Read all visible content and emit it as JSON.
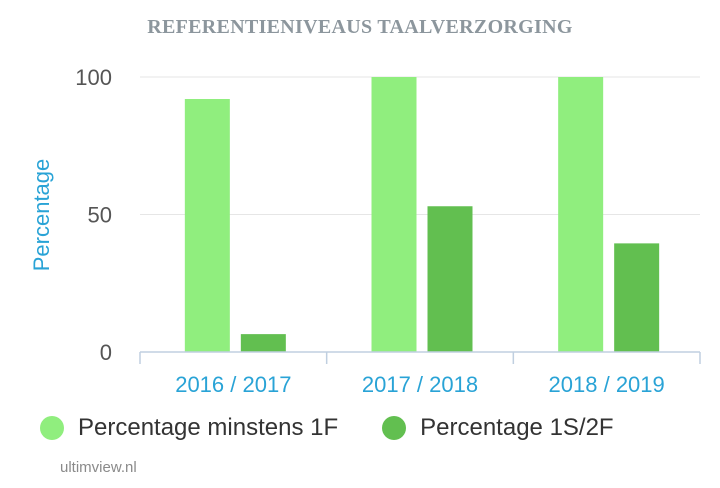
{
  "chart_data": {
    "type": "bar",
    "title": "REFERENTIENIVEAUS TAALVERZORGING",
    "ylabel": "Percentage",
    "xlabel": "",
    "categories": [
      "2016 / 2017",
      "2017 / 2018",
      "2018 / 2019"
    ],
    "series": [
      {
        "name": "Percentage minstens 1F",
        "values": [
          92,
          100,
          100
        ],
        "color": "#90ee7e"
      },
      {
        "name": "Percentage 1S/2F",
        "values": [
          6.5,
          53,
          39.5
        ],
        "color": "#62bf50"
      }
    ],
    "ylim": [
      0,
      100
    ],
    "yticks": [
      0,
      50,
      100
    ],
    "grid": true,
    "legend": "bottom-left",
    "colors": {
      "title": "#8c969d",
      "axis_labels": "#29a3d6",
      "tick_labels": "#555555",
      "grid": "#e6e6e6",
      "axis": "#c0cfe0"
    }
  },
  "credit": "ultimview.nl"
}
